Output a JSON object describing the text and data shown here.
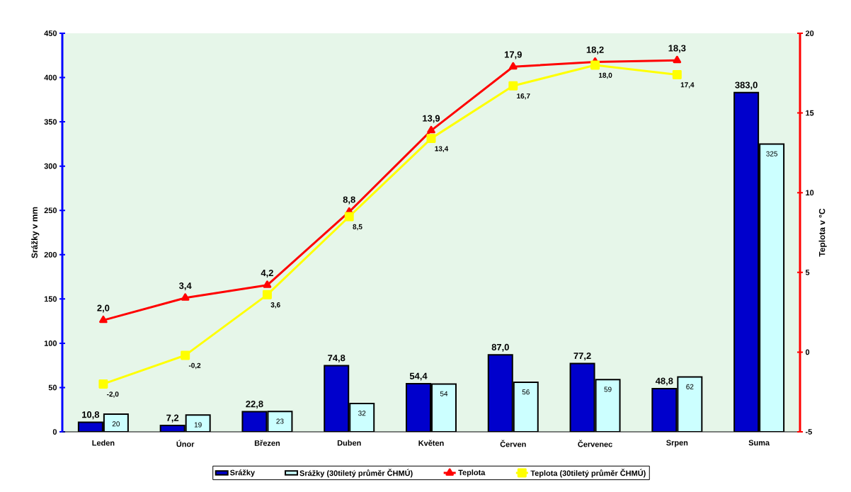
{
  "chart_data": {
    "type": "bar",
    "categories": [
      "Leden",
      "Únor",
      "Březen",
      "Duben",
      "Květen",
      "Červen",
      "Červenec",
      "Srpen",
      "Suma"
    ],
    "ylabel": "Srážky v mm",
    "y2label": "Teplota v °C",
    "ylim": [
      0,
      450
    ],
    "yticks": [
      0,
      50,
      100,
      150,
      200,
      250,
      300,
      350,
      400,
      450
    ],
    "y2lim": [
      -5,
      20
    ],
    "y2ticks": [
      -5,
      0,
      5,
      10,
      15,
      20
    ],
    "legend": "bottom",
    "series": [
      {
        "name": "Srážky",
        "color": "#0000cc",
        "values": [
          10.8,
          7.2,
          22.8,
          74.8,
          54.4,
          87.0,
          77.2,
          48.8,
          383.0
        ],
        "value_labels": [
          "10,8",
          "7,2",
          "22,8",
          "74,8",
          "54,4",
          "87,0",
          "77,2",
          "48,8",
          "383,0"
        ]
      },
      {
        "name": "Srážky (30tiletý průměr ČHMÚ)",
        "color": "#ccffff",
        "values": [
          20,
          19,
          23,
          32,
          54,
          56,
          59,
          62,
          325
        ],
        "value_labels": [
          "20",
          "19",
          "23",
          "32",
          "54",
          "56",
          "59",
          "62",
          "325"
        ]
      },
      {
        "name": "Teplota",
        "type": "line",
        "axis": "y2",
        "marker": "triangle",
        "color": "#ff0000",
        "values": [
          2.0,
          3.4,
          4.2,
          8.8,
          13.9,
          17.9,
          18.2,
          18.3,
          null
        ],
        "value_labels": [
          "2,0",
          "3,4",
          "4,2",
          "8,8",
          "13,9",
          "17,9",
          "18,2",
          "18,3",
          null
        ]
      },
      {
        "name": "Teplota (30tiletý průměr ČHMÚ)",
        "type": "line",
        "axis": "y2",
        "marker": "square",
        "color": "#ffff00",
        "values": [
          -2.0,
          -0.2,
          3.6,
          8.5,
          13.4,
          16.7,
          18.0,
          17.4,
          null
        ],
        "value_labels": [
          "-2,0",
          "-0,2",
          "3,6",
          "8,5",
          "13,4",
          "16,7",
          "18,0",
          "17,4",
          null
        ]
      }
    ]
  }
}
